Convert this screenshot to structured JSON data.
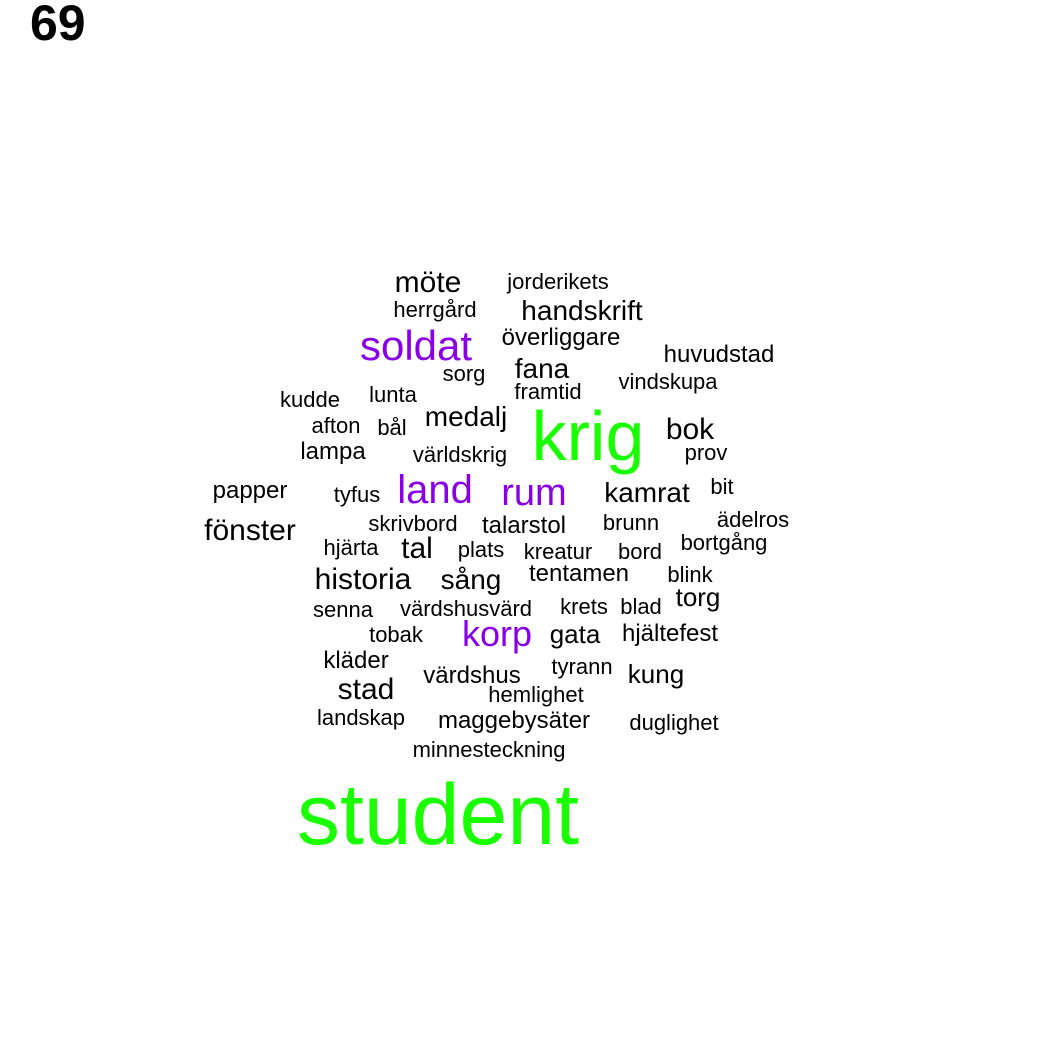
{
  "page_number": "69",
  "colors": {
    "small": "#000000",
    "medium": "#8a00e6",
    "large": "#1aff00"
  },
  "words": [
    {
      "text": "student",
      "size": "large"
    },
    {
      "text": "krig",
      "size": "large"
    },
    {
      "text": "soldat",
      "size": "medium"
    },
    {
      "text": "land",
      "size": "medium"
    },
    {
      "text": "rum",
      "size": "medium"
    },
    {
      "text": "korp",
      "size": "medium"
    },
    {
      "text": "möte",
      "size": "small"
    },
    {
      "text": "jorderikets",
      "size": "small"
    },
    {
      "text": "herrgård",
      "size": "small"
    },
    {
      "text": "handskrift",
      "size": "small"
    },
    {
      "text": "överliggare",
      "size": "small"
    },
    {
      "text": "huvudstad",
      "size": "small"
    },
    {
      "text": "fana",
      "size": "small"
    },
    {
      "text": "sorg",
      "size": "small"
    },
    {
      "text": "vindskupa",
      "size": "small"
    },
    {
      "text": "lunta",
      "size": "small"
    },
    {
      "text": "framtid",
      "size": "small"
    },
    {
      "text": "kudde",
      "size": "small"
    },
    {
      "text": "medalj",
      "size": "small"
    },
    {
      "text": "afton",
      "size": "small"
    },
    {
      "text": "bål",
      "size": "small"
    },
    {
      "text": "bok",
      "size": "small"
    },
    {
      "text": "lampa",
      "size": "small"
    },
    {
      "text": "världskrig",
      "size": "small"
    },
    {
      "text": "prov",
      "size": "small"
    },
    {
      "text": "papper",
      "size": "small"
    },
    {
      "text": "tyfus",
      "size": "small"
    },
    {
      "text": "kamrat",
      "size": "small"
    },
    {
      "text": "bit",
      "size": "small"
    },
    {
      "text": "fönster",
      "size": "small"
    },
    {
      "text": "skrivbord",
      "size": "small"
    },
    {
      "text": "talarstol",
      "size": "small"
    },
    {
      "text": "brunn",
      "size": "small"
    },
    {
      "text": "ädelros",
      "size": "small"
    },
    {
      "text": "hjärta",
      "size": "small"
    },
    {
      "text": "tal",
      "size": "small"
    },
    {
      "text": "plats",
      "size": "small"
    },
    {
      "text": "kreatur",
      "size": "small"
    },
    {
      "text": "bord",
      "size": "small"
    },
    {
      "text": "bortgång",
      "size": "small"
    },
    {
      "text": "historia",
      "size": "small"
    },
    {
      "text": "sång",
      "size": "small"
    },
    {
      "text": "tentamen",
      "size": "small"
    },
    {
      "text": "blink",
      "size": "small"
    },
    {
      "text": "torg",
      "size": "small"
    },
    {
      "text": "senna",
      "size": "small"
    },
    {
      "text": "värdshusvärd",
      "size": "small"
    },
    {
      "text": "krets",
      "size": "small"
    },
    {
      "text": "blad",
      "size": "small"
    },
    {
      "text": "tobak",
      "size": "small"
    },
    {
      "text": "gata",
      "size": "small"
    },
    {
      "text": "hjältefest",
      "size": "small"
    },
    {
      "text": "kläder",
      "size": "small"
    },
    {
      "text": "tyrann",
      "size": "small"
    },
    {
      "text": "kung",
      "size": "small"
    },
    {
      "text": "värdshus",
      "size": "small"
    },
    {
      "text": "stad",
      "size": "small"
    },
    {
      "text": "hemlighet",
      "size": "small"
    },
    {
      "text": "landskap",
      "size": "small"
    },
    {
      "text": "maggebysäter",
      "size": "small"
    },
    {
      "text": "duglighet",
      "size": "small"
    },
    {
      "text": "minnesteckning",
      "size": "small"
    }
  ]
}
